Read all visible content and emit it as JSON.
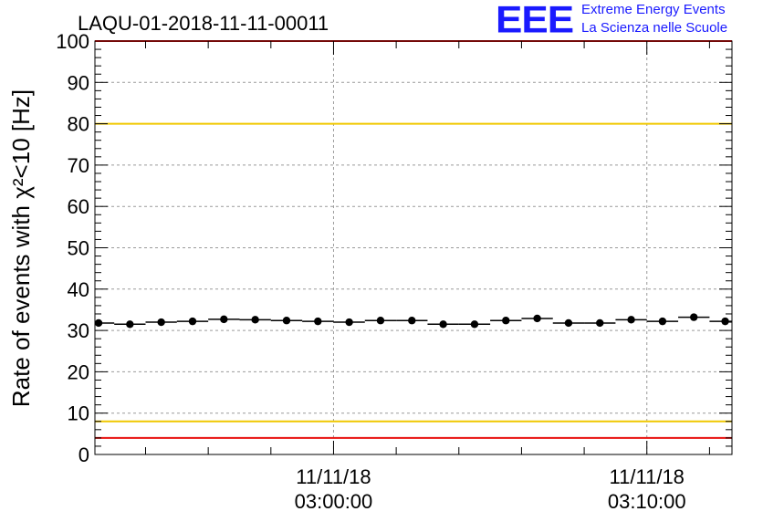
{
  "logo": {
    "mark": "EEE",
    "line1": "Extreme Energy Events",
    "line2": "La Scienza nelle Scuole"
  },
  "chart_data": {
    "type": "scatter",
    "title": "LAQU-01-2018-11-11-00011",
    "ylabel": "Rate of events with χ²<10 [Hz]",
    "xlabel": "",
    "ylim": [
      0,
      100
    ],
    "yticks": [
      0,
      10,
      20,
      30,
      40,
      50,
      60,
      70,
      80,
      90,
      100
    ],
    "xlim_seconds": [
      -457,
      763
    ],
    "xtick_labels": [
      {
        "t": 0,
        "date": "11/11/18",
        "time": "03:00:00"
      },
      {
        "t": 600,
        "date": "11/11/18",
        "time": "03:10:00"
      }
    ],
    "x_minor_step_seconds": 120,
    "grid": true,
    "reference_lines": [
      {
        "value": 100,
        "color": "#e8120f"
      },
      {
        "value": 80,
        "color": "#f0c800"
      },
      {
        "value": 8,
        "color": "#f0c800"
      },
      {
        "value": 4,
        "color": "#e8120f"
      }
    ],
    "marker_color": "#000000",
    "series": [
      {
        "name": "rate",
        "bin_width_seconds": 60,
        "x": [
          -450,
          -390,
          -330,
          -270,
          -210,
          -150,
          -90,
          -30,
          30,
          90,
          150,
          210,
          270,
          330,
          390,
          450,
          510,
          570,
          630,
          690,
          750
        ],
        "values": [
          31.8,
          31.5,
          32.0,
          32.2,
          32.7,
          32.6,
          32.4,
          32.2,
          32.0,
          32.4,
          32.4,
          31.5,
          31.5,
          32.4,
          32.9,
          31.8,
          31.8,
          32.6,
          32.2,
          33.2,
          32.2
        ]
      }
    ]
  }
}
